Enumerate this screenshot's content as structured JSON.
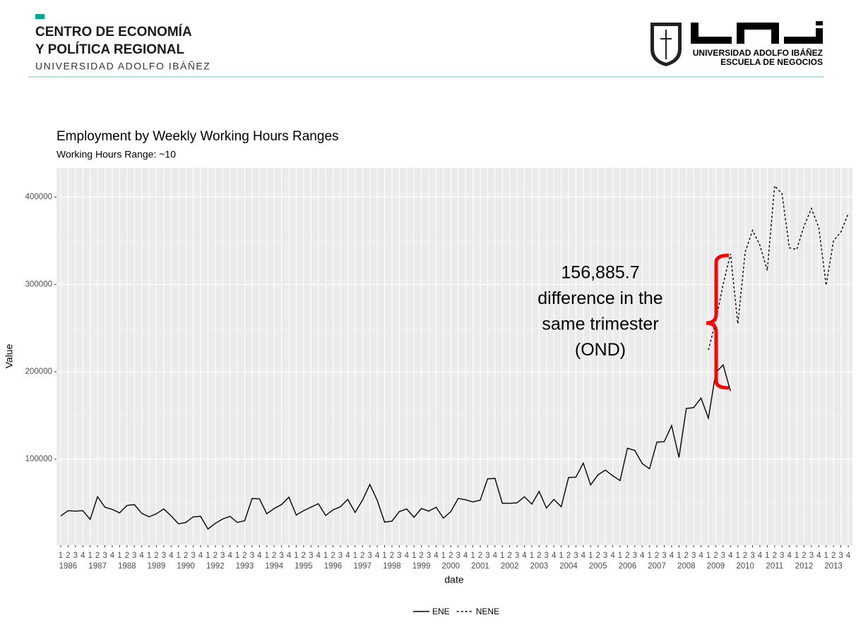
{
  "header": {
    "left_title": [
      "CENTRO DE ECONOMÍA",
      "Y POLÍTICA REGIONAL"
    ],
    "left_subtitle": "UNIVERSIDAD ADOLFO IBÁÑEZ",
    "right_lines": [
      "UNIVERSIDAD ADOLFO IBÁÑEZ",
      "ESCUELA DE NEGOCIOS"
    ]
  },
  "chart_data": {
    "type": "line",
    "title": "Employment by Weekly Working Hours Ranges",
    "subtitle": "Working Hours Range: ~10",
    "x_label": "date",
    "y_label": "Value",
    "categories": [
      "1",
      "2",
      "3",
      "4",
      "1",
      "2",
      "3",
      "4",
      "1",
      "2",
      "3",
      "4",
      "1",
      "2",
      "3",
      "4",
      "1",
      "2",
      "3",
      "4",
      "1",
      "2",
      "3",
      "4",
      "1",
      "2",
      "3",
      "4",
      "1",
      "2",
      "3",
      "4",
      "1",
      "2",
      "3",
      "4",
      "1",
      "2",
      "3",
      "4",
      "1",
      "2",
      "3",
      "4",
      "1",
      "2",
      "3",
      "4",
      "1",
      "2",
      "3",
      "4",
      "1",
      "2",
      "3",
      "4",
      "1",
      "2",
      "3",
      "4",
      "1",
      "2",
      "3",
      "4",
      "1",
      "2",
      "3",
      "4",
      "1",
      "2",
      "3",
      "4",
      "1",
      "2",
      "3",
      "4",
      "1",
      "2",
      "3",
      "4",
      "1",
      "2",
      "3",
      "4",
      "1",
      "2",
      "3",
      "4",
      "1",
      "2",
      "3",
      "4",
      "1",
      "2",
      "3",
      "4",
      "1",
      "2",
      "3",
      "4",
      "1",
      "2",
      "3",
      "4",
      "1",
      "2",
      "3",
      "4"
    ],
    "years": [
      "1986",
      "1987",
      "1988",
      "1989",
      "1990",
      "1992",
      "1993",
      "1994",
      "1995",
      "1996",
      "1997",
      "1998",
      "1999",
      "2000",
      "2001",
      "2002",
      "2003",
      "2004",
      "2005",
      "2006",
      "2007",
      "2008",
      "2009",
      "2010",
      "2011",
      "2012",
      "2013"
    ],
    "series": [
      {
        "name": "ENE",
        "color": "#000000",
        "dash": "solid",
        "values": [
          35000,
          41000,
          40500,
          41000,
          31000,
          57000,
          45000,
          42500,
          38500,
          47000,
          48000,
          38000,
          34000,
          37500,
          43000,
          35000,
          26000,
          27500,
          34000,
          34500,
          20000,
          26500,
          31500,
          34500,
          27500,
          29500,
          55000,
          54500,
          37500,
          43500,
          48000,
          56500,
          36000,
          41000,
          45000,
          49000,
          35500,
          42000,
          45500,
          54000,
          39000,
          53000,
          71000,
          53000,
          28000,
          29000,
          40000,
          43000,
          33500,
          43500,
          40500,
          45000,
          32500,
          40000,
          55000,
          53500,
          51000,
          53000,
          77500,
          78000,
          49500,
          49500,
          50000,
          57000,
          48500,
          63000,
          44000,
          54000,
          45500,
          79000,
          79500,
          95500,
          70500,
          82000,
          87500,
          81000,
          75500,
          112500,
          110000,
          95000,
          89000,
          119500,
          120000,
          138500,
          102000,
          158000,
          159000,
          170000,
          147000,
          199000,
          208000,
          178000,
          null,
          null,
          null,
          null,
          null,
          null,
          null,
          null,
          null,
          null,
          null,
          null,
          null,
          null,
          null,
          null
        ]
      },
      {
        "name": "NENE",
        "color": "#000000",
        "dash": "dotted",
        "values": [
          null,
          null,
          null,
          null,
          null,
          null,
          null,
          null,
          null,
          null,
          null,
          null,
          null,
          null,
          null,
          null,
          null,
          null,
          null,
          null,
          null,
          null,
          null,
          null,
          null,
          null,
          null,
          null,
          null,
          null,
          null,
          null,
          null,
          null,
          null,
          null,
          null,
          null,
          null,
          null,
          null,
          null,
          null,
          null,
          null,
          null,
          null,
          null,
          null,
          null,
          null,
          null,
          null,
          null,
          null,
          null,
          null,
          null,
          null,
          null,
          null,
          null,
          null,
          null,
          null,
          null,
          null,
          null,
          null,
          null,
          null,
          null,
          null,
          null,
          null,
          null,
          null,
          null,
          null,
          null,
          null,
          null,
          null,
          null,
          null,
          null,
          null,
          null,
          225000,
          258000,
          300000,
          335000,
          255000,
          337000,
          362000,
          345000,
          316000,
          413000,
          404000,
          342000,
          340000,
          367000,
          387000,
          365000,
          299000,
          350000,
          360000,
          381000
        ]
      }
    ],
    "ylim": [
      1500,
      433500
    ],
    "yticks": [
      100000,
      200000,
      300000,
      400000
    ],
    "y_minor_gridlines": [
      50000,
      150000,
      250000,
      350000
    ],
    "grid": true,
    "legend_position": "bottom",
    "annotation": [
      "156,885.7",
      "difference in the",
      "same trimester",
      "(OND)"
    ],
    "annotation_color": "#ff0000"
  }
}
